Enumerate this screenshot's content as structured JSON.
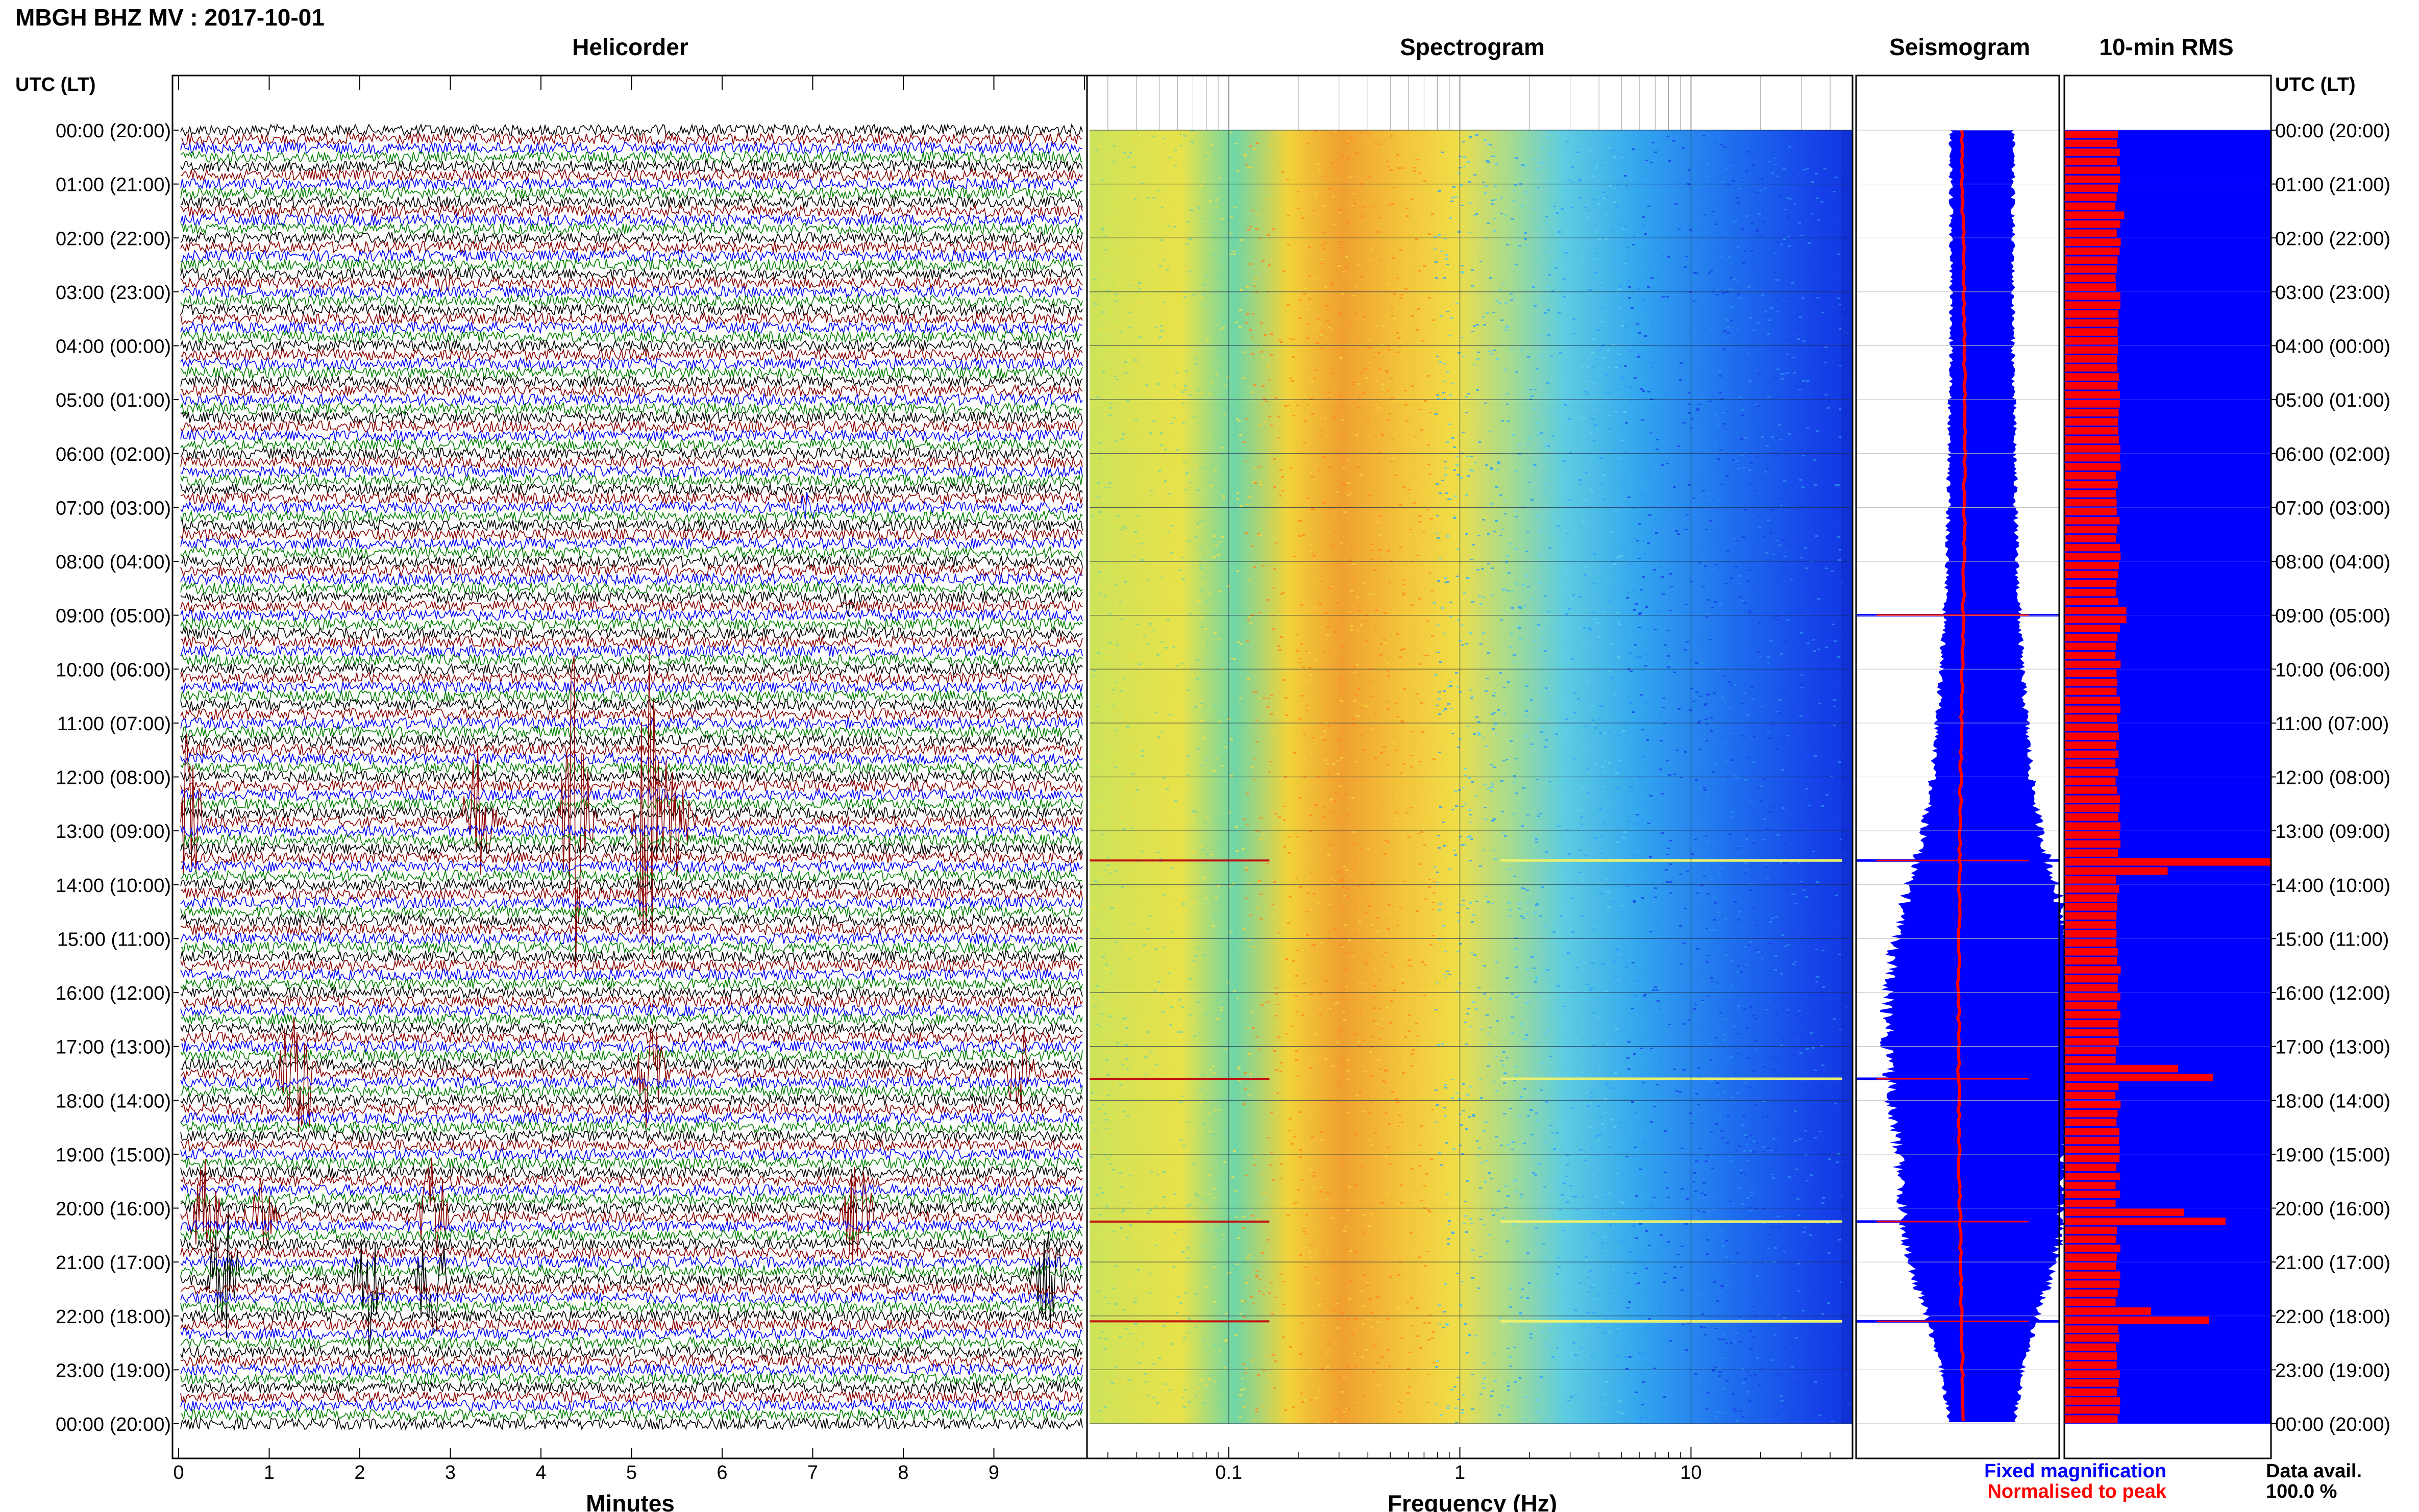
{
  "header": {
    "station_title": "MBGH BHZ MV : 2017-10-01",
    "utc_lt_left": "UTC (LT)",
    "utc_lt_right": "UTC (LT)"
  },
  "panels": {
    "helicorder": "Helicorder",
    "spectrogram": "Spectrogram",
    "seismogram": "Seismogram",
    "rms": "10-min RMS"
  },
  "time_labels": [
    "00:00 (20:00)",
    "01:00 (21:00)",
    "02:00 (22:00)",
    "03:00 (23:00)",
    "04:00 (00:00)",
    "05:00 (01:00)",
    "06:00 (02:00)",
    "07:00 (03:00)",
    "08:00 (04:00)",
    "09:00 (05:00)",
    "10:00 (06:00)",
    "11:00 (07:00)",
    "12:00 (08:00)",
    "13:00 (09:00)",
    "14:00 (10:00)",
    "15:00 (11:00)",
    "16:00 (12:00)",
    "17:00 (13:00)",
    "18:00 (14:00)",
    "19:00 (15:00)",
    "20:00 (16:00)",
    "21:00 (17:00)",
    "22:00 (18:00)",
    "23:00 (19:00)",
    "00:00 (20:00)"
  ],
  "legend": {
    "fixed": "Fixed magnification",
    "normalised": "Normalised to peak",
    "data_avail_label": "Data avail.",
    "data_avail_value": "100.0 %",
    "fixed_color": "#0000ff",
    "normalised_color": "#ff0000"
  },
  "chart_data": [
    {
      "type": "line",
      "name": "helicorder",
      "title": "Helicorder",
      "xlabel": "Minutes",
      "ylabel": "UTC (LT)",
      "xlim": [
        0,
        10
      ],
      "x_ticks": [
        "0",
        "1",
        "2",
        "3",
        "4",
        "5",
        "6",
        "7",
        "8",
        "9"
      ],
      "trace_colors": [
        "#000000",
        "#8b0000",
        "#0000ff",
        "#008000"
      ],
      "events": [
        {
          "hour": 2.9,
          "minute": 2.9,
          "amp": 0.3,
          "color": "#0000ff"
        },
        {
          "hour": 6.95,
          "minute": 6.9,
          "amp": 0.35,
          "color": "#008000"
        },
        {
          "hour": 8.7,
          "minute": 7.4,
          "amp": 0.4,
          "color": "#8b0000"
        },
        {
          "hour": 12.9,
          "minute": 0.1,
          "amp": 2.0,
          "color": "#0000ff"
        },
        {
          "hour": 12.9,
          "minute": 3.3,
          "amp": 1.8,
          "color": "#8b0000"
        },
        {
          "hour": 12.9,
          "minute": 4.4,
          "amp": 5.0,
          "color": "#8b0000"
        },
        {
          "hour": 12.9,
          "minute": 5.2,
          "amp": 4.5,
          "color": "#8b0000"
        },
        {
          "hour": 12.9,
          "minute": 5.5,
          "amp": 1.5,
          "color": "#8b0000"
        },
        {
          "hour": 17.5,
          "minute": 1.3,
          "amp": 3.5,
          "color": "#0000ff"
        },
        {
          "hour": 17.5,
          "minute": 5.2,
          "amp": 1.6,
          "color": "#8b0000"
        },
        {
          "hour": 17.5,
          "minute": 9.3,
          "amp": 1.2,
          "color": "#8b0000"
        },
        {
          "hour": 20.2,
          "minute": 0.3,
          "amp": 1.6,
          "color": "#0000ff"
        },
        {
          "hour": 20.2,
          "minute": 0.9,
          "amp": 1.0,
          "color": "#0000ff"
        },
        {
          "hour": 20.2,
          "minute": 2.8,
          "amp": 1.5,
          "color": "#0000ff"
        },
        {
          "hour": 20.2,
          "minute": 7.5,
          "amp": 1.3,
          "color": "#8b0000"
        },
        {
          "hour": 21.3,
          "minute": 0.5,
          "amp": 2.0,
          "color": "#8b0000"
        },
        {
          "hour": 21.3,
          "minute": 2.1,
          "amp": 1.6,
          "color": "#8b0000"
        },
        {
          "hour": 21.3,
          "minute": 2.8,
          "amp": 1.8,
          "color": "#8b0000"
        },
        {
          "hour": 21.3,
          "minute": 9.6,
          "amp": 1.4,
          "color": "#000000"
        }
      ]
    },
    {
      "type": "heatmap",
      "name": "spectrogram",
      "title": "Spectrogram",
      "xlabel": "Frequency (Hz)",
      "x_scale": "log",
      "xlim": [
        0.025,
        50
      ],
      "x_ticks": [
        0.1,
        1,
        10
      ],
      "colormap": "jet",
      "peak_band_hz": [
        0.2,
        0.5
      ],
      "event_lines_hour": [
        13.55,
        17.6,
        20.25,
        22.1
      ]
    },
    {
      "type": "area",
      "name": "seismogram",
      "title": "Seismogram",
      "series": [
        {
          "name": "Fixed magnification",
          "color": "#0000ff"
        },
        {
          "name": "Normalised to peak",
          "color": "#ff0000"
        }
      ],
      "fixed_envelope": {
        "hour": [
          0,
          4,
          8,
          10,
          12,
          13,
          14,
          15,
          16,
          17,
          18,
          19,
          20,
          21,
          22,
          23,
          24
        ],
        "half_width": [
          0.17,
          0.17,
          0.19,
          0.22,
          0.27,
          0.32,
          0.4,
          0.48,
          0.52,
          0.52,
          0.5,
          0.46,
          0.44,
          0.4,
          0.3,
          0.22,
          0.18
        ]
      },
      "spikes_hour": [
        9.0,
        13.55,
        17.6,
        20.25,
        22.1
      ]
    },
    {
      "type": "bar",
      "name": "10-min rms",
      "title": "10-min RMS",
      "orientation": "horizontal",
      "baseline_fraction": 0.26,
      "spikes": [
        {
          "hour": 13.55,
          "fraction": 1.0
        },
        {
          "hour": 13.75,
          "fraction": 0.5
        },
        {
          "hour": 17.5,
          "fraction": 0.55
        },
        {
          "hour": 17.65,
          "fraction": 0.72
        },
        {
          "hour": 20.15,
          "fraction": 0.58
        },
        {
          "hour": 20.3,
          "fraction": 0.78
        },
        {
          "hour": 22.0,
          "fraction": 0.42
        },
        {
          "hour": 22.15,
          "fraction": 0.7
        },
        {
          "hour": 9.0,
          "fraction": 0.3
        },
        {
          "hour": 1.55,
          "fraction": 0.29
        }
      ]
    }
  ]
}
